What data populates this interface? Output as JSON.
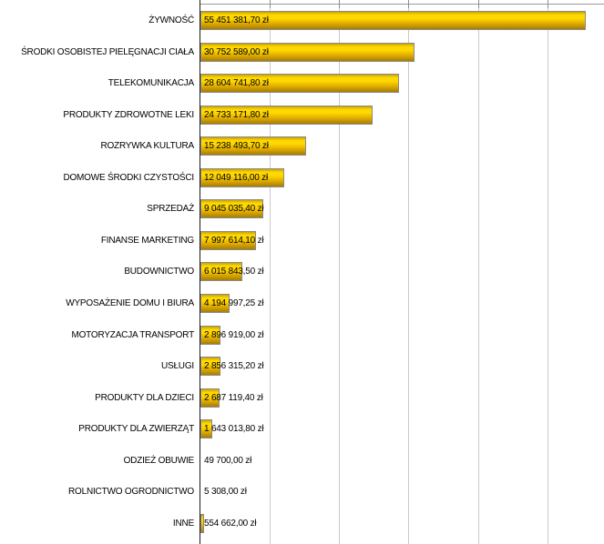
{
  "chart_data": {
    "type": "bar",
    "orientation": "horizontal",
    "title": "",
    "xlabel": "",
    "ylabel": "",
    "unit": "zł",
    "grid": true,
    "xlim": [
      0,
      58000000
    ],
    "gridline_interval": 10000000,
    "categories": [
      "ŻYWNOŚĆ",
      "ŚRODKI OSOBISTEJ PIELĘGNACJI CIAŁA",
      "TELEKOMUNIKACJA",
      "PRODUKTY ZDROWOTNE LEKI",
      "ROZRYWKA KULTURA",
      "DOMOWE ŚRODKI CZYSTOŚCI",
      "SPRZEDAŻ",
      "FINANSE MARKETING",
      "BUDOWNICTWO",
      "WYPOSAŻENIE DOMU I BIURA",
      "MOTORYZACJA TRANSPORT",
      "USŁUGI",
      "PRODUKTY DLA DZIECI",
      "PRODUKTY DLA ZWIERZĄT",
      "ODZIEŻ OBUWIE",
      "ROLNICTWO OGRODNICTWO",
      "INNE"
    ],
    "values": [
      55451381.7,
      30752589.0,
      28604741.8,
      24733171.8,
      15238493.7,
      12049116.0,
      9045035.4,
      7997614.1,
      6015843.5,
      4194997.25,
      2896919.0,
      2856315.2,
      2687119.4,
      1643013.8,
      49700.0,
      5308.0,
      554662.0
    ],
    "value_labels": [
      "55 451 381,70 zł",
      "30 752 589,00 zł",
      "28 604 741,80 zł",
      "24 733 171,80 zł",
      "15 238 493,70 zł",
      "12 049 116,00 zł",
      "9 045 035,40 zł",
      "7 997 614,10 zł",
      "6 015 843,50 zł",
      "4 194 997,25 zł",
      "2 896 919,00 zł",
      "2 856 315,20 zł",
      "2 687 119,40 zł",
      "1 643 013,80 zł",
      "49 700,00 zł",
      "5 308,00 zł",
      "554 662,00 zł"
    ]
  },
  "colors": {
    "background": "#ffffff",
    "text": "#000000",
    "axis": "#1a1a1a",
    "top_frame": "#9a9a9a",
    "gridline": "#c9c9c9",
    "axis_tick": "#8f8f8f",
    "bar_border": "#8a8a8a",
    "bar_gradient_top_edge": "#c9a206",
    "bar_gradient_bright": "#ffd800",
    "bar_gradient_mid": "#e8b400",
    "bar_gradient_bottom": "#a87d04"
  }
}
